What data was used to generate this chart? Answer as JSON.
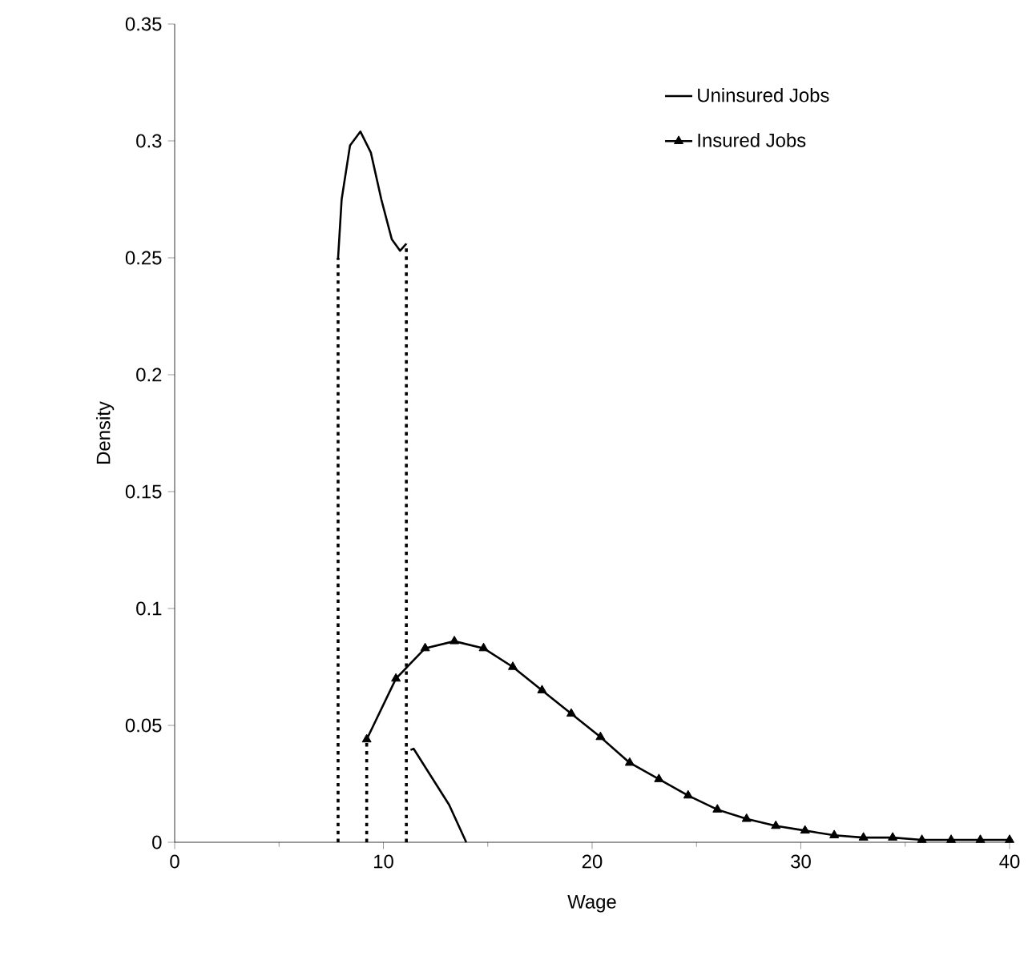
{
  "chart_data": {
    "type": "line",
    "xlabel": "Wage",
    "ylabel": "Density",
    "xlim": [
      0,
      40
    ],
    "xticks": [
      0,
      10,
      20,
      30,
      40
    ],
    "ylim": [
      0,
      0.35
    ],
    "yticks": [
      0,
      0.05,
      0.1,
      0.15,
      0.2,
      0.25,
      0.3,
      0.35
    ],
    "legend": "top right",
    "series": [
      {
        "name": "Uninsured Jobs",
        "color": "#000000",
        "marker": "none",
        "line_style": "solid",
        "x": [
          7.83,
          8.0,
          8.4,
          8.9,
          9.4,
          9.9,
          10.4,
          10.8,
          11.1,
          11.2,
          11.3,
          11.45,
          12.3,
          13.15,
          13.97
        ],
        "values": [
          0.25,
          0.275,
          0.298,
          0.304,
          0.295,
          0.275,
          0.258,
          0.253,
          0.256,
          null,
          0.0395,
          0.04,
          0.028,
          0.016,
          0
        ]
      },
      {
        "name": "Insured Jobs",
        "color": "#000000",
        "marker": "triangle",
        "line_style": "solid",
        "x": [
          9.2,
          10.6,
          12.0,
          13.4,
          14.8,
          16.2,
          17.6,
          19.0,
          20.4,
          21.8,
          23.2,
          24.6,
          26.0,
          27.4,
          28.8,
          30.2,
          31.6,
          33.0,
          34.4,
          35.8,
          37.2,
          38.6,
          40.0
        ],
        "values": [
          0.044,
          0.07,
          0.083,
          0.086,
          0.083,
          0.075,
          0.065,
          0.055,
          0.045,
          0.034,
          0.027,
          0.02,
          0.014,
          0.01,
          0.007,
          0.005,
          0.003,
          0.002,
          0.002,
          0.001,
          0.001,
          0.001,
          0.001
        ]
      },
      {
        "color": "#000000",
        "marker": "none",
        "line_style": "dotted",
        "x": [
          7.83,
          7.83
        ],
        "values": [
          0,
          0.25
        ]
      },
      {
        "color": "#000000",
        "marker": "none",
        "line_style": "dotted",
        "x": [
          9.2,
          9.2
        ],
        "values": [
          0,
          0.044
        ]
      },
      {
        "color": "#000000",
        "marker": "none",
        "line_style": "dotted",
        "x": [
          11.1,
          11.1
        ],
        "values": [
          0,
          0.256
        ]
      }
    ]
  }
}
